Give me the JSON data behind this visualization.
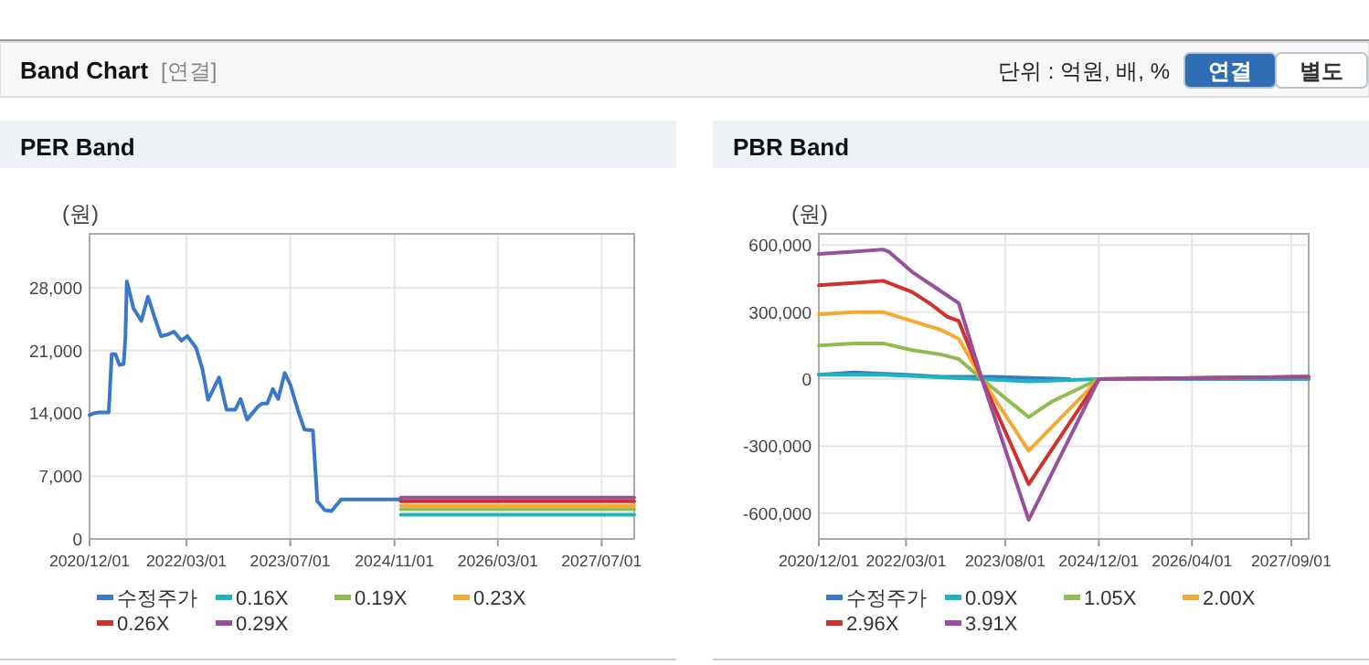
{
  "chart_data": [
    {
      "type": "other",
      "title": "Band Chart",
      "annotations": [
        "[연결]",
        "단위 : 억원, 배, %",
        "연결",
        "별도"
      ]
    },
    {
      "type": "line",
      "title": "PER Band",
      "ylabel": "(원)",
      "grid": true,
      "legend": "bottom",
      "marker": "none",
      "line_style": "solid",
      "xlim": [
        "2020-12-01",
        "2027-12-01"
      ],
      "xticks": [
        {
          "value": "2020-12-01",
          "label": "2020/12/01"
        },
        {
          "value": "2022-03-01",
          "label": "2022/03/01"
        },
        {
          "value": "2023-07-01",
          "label": "2023/07/01"
        },
        {
          "value": "2024-11-01",
          "label": "2024/11/01"
        },
        {
          "value": "2026-03-01",
          "label": "2026/03/01"
        },
        {
          "value": "2027-07-01",
          "label": "2027/07/01"
        }
      ],
      "ylim": [
        0,
        34000
      ],
      "yticks": [
        {
          "value": 0,
          "label": "0"
        },
        {
          "value": 7000,
          "label": "7,000"
        },
        {
          "value": 14000,
          "label": "14,000"
        },
        {
          "value": 21000,
          "label": "21,000"
        },
        {
          "value": 28000,
          "label": "28,000"
        }
      ],
      "series": [
        {
          "name": "수정주가",
          "color": "#3a78c9",
          "x": [
            "2020-12-01",
            "2020-12-20",
            "2021-01-15",
            "2021-03-01",
            "2021-03-15",
            "2021-04-01",
            "2021-04-20",
            "2021-05-10",
            "2021-05-18",
            "2021-05-25",
            "2021-06-05",
            "2021-06-25",
            "2021-08-01",
            "2021-09-01",
            "2021-10-05",
            "2021-11-01",
            "2021-12-05",
            "2022-01-01",
            "2022-02-05",
            "2022-03-05",
            "2022-04-15",
            "2022-05-15",
            "2022-06-10",
            "2022-08-01",
            "2022-09-05",
            "2022-10-15",
            "2022-11-10",
            "2022-12-10",
            "2023-02-01",
            "2023-02-20",
            "2023-03-15",
            "2023-04-10",
            "2023-05-05",
            "2023-06-05",
            "2023-07-01",
            "2023-08-05",
            "2023-09-05",
            "2023-10-15",
            "2023-11-05",
            "2023-12-10",
            "2024-01-10",
            "2024-02-25",
            "2024-12-01"
          ],
          "values": [
            13800,
            14000,
            14100,
            14100,
            20600,
            20600,
            19400,
            19500,
            22400,
            28700,
            27700,
            25700,
            24300,
            27000,
            24500,
            22600,
            22800,
            23100,
            22100,
            22600,
            21300,
            18900,
            15500,
            18000,
            14400,
            14400,
            15600,
            13300,
            14800,
            15100,
            15100,
            16700,
            15600,
            18500,
            17200,
            14400,
            12200,
            12100,
            4200,
            3200,
            3100,
            4400,
            4400
          ]
        },
        {
          "name": "0.16X",
          "color": "#1fb3bd",
          "x": [
            "2024-12-01",
            "2027-12-01"
          ],
          "values": [
            2700,
            2700
          ]
        },
        {
          "name": "0.19X",
          "color": "#8fbe4f",
          "x": [
            "2024-12-01",
            "2027-12-01"
          ],
          "values": [
            3300,
            3300
          ]
        },
        {
          "name": "0.23X",
          "color": "#f5a833",
          "x": [
            "2024-12-01",
            "2027-12-01"
          ],
          "values": [
            3700,
            3700
          ]
        },
        {
          "name": "0.26X",
          "color": "#d0312d",
          "x": [
            "2024-12-01",
            "2027-12-01"
          ],
          "values": [
            4200,
            4200
          ]
        },
        {
          "name": "0.29X",
          "color": "#9a4f9e",
          "x": [
            "2024-12-01",
            "2027-12-01"
          ],
          "values": [
            4600,
            4600
          ]
        }
      ]
    },
    {
      "type": "line",
      "title": "PBR Band",
      "ylabel": "(원)",
      "grid": true,
      "legend": "bottom",
      "marker": "none",
      "line_style": "solid",
      "xlim": [
        "2020-12-01",
        "2027-12-01"
      ],
      "xticks": [
        {
          "value": "2020-12-01",
          "label": "2020/12/01"
        },
        {
          "value": "2022-03-01",
          "label": "2022/03/01"
        },
        {
          "value": "2023-08-01",
          "label": "2023/08/01"
        },
        {
          "value": "2024-12-01",
          "label": "2024/12/01"
        },
        {
          "value": "2026-04-01",
          "label": "2026/04/01"
        },
        {
          "value": "2027-09-01",
          "label": "2027/09/01"
        }
      ],
      "ylim": [
        -715000,
        650000
      ],
      "yticks": [
        {
          "value": -600000,
          "label": "-600,000"
        },
        {
          "value": -300000,
          "label": "-300,000"
        },
        {
          "value": 0,
          "label": "0"
        },
        {
          "value": 300000,
          "label": "300,000"
        },
        {
          "value": 600000,
          "label": "600,000"
        }
      ],
      "series": [
        {
          "name": "수정주가",
          "color": "#3a78c9",
          "x": [
            "2020-12-01",
            "2021-06-01",
            "2022-03-01",
            "2022-09-01",
            "2023-06-01",
            "2024-07-01"
          ],
          "values": [
            20000,
            30000,
            20000,
            10000,
            10000,
            0
          ]
        },
        {
          "name": "0.09X",
          "color": "#1fb3bd",
          "x": [
            "2020-12-01",
            "2021-11-01",
            "2023-04-01",
            "2023-12-01",
            "2024-12-01",
            "2027-12-01"
          ],
          "values": [
            20000,
            20000,
            0,
            -10000,
            0,
            0
          ]
        },
        {
          "name": "1.05X",
          "color": "#8fbe4f",
          "x": [
            "2020-12-01",
            "2021-06-01",
            "2021-11-01",
            "2022-04-01",
            "2022-09-01",
            "2022-12-01",
            "2023-04-01",
            "2023-12-01",
            "2024-04-01",
            "2024-12-01",
            "2027-12-01"
          ],
          "values": [
            150000,
            160000,
            160000,
            130000,
            110000,
            90000,
            0,
            -170000,
            -100000,
            0,
            10000
          ]
        },
        {
          "name": "2.00X",
          "color": "#f5a833",
          "x": [
            "2020-12-01",
            "2021-06-01",
            "2021-11-01",
            "2022-04-01",
            "2022-09-01",
            "2022-12-01",
            "2023-04-01",
            "2023-12-01",
            "2024-12-01",
            "2027-12-01"
          ],
          "values": [
            290000,
            300000,
            300000,
            260000,
            220000,
            180000,
            0,
            -320000,
            0,
            10000
          ]
        },
        {
          "name": "2.96X",
          "color": "#d0312d",
          "x": [
            "2020-12-01",
            "2021-06-01",
            "2021-11-01",
            "2022-04-01",
            "2022-07-01",
            "2022-10-01",
            "2022-12-01",
            "2023-04-01",
            "2023-12-01",
            "2024-12-01",
            "2027-12-01"
          ],
          "values": [
            420000,
            430000,
            440000,
            390000,
            340000,
            280000,
            260000,
            0,
            -470000,
            0,
            10000
          ]
        },
        {
          "name": "3.91X",
          "color": "#9a4f9e",
          "x": [
            "2020-12-01",
            "2021-06-01",
            "2021-11-01",
            "2021-12-01",
            "2022-04-01",
            "2022-08-01",
            "2022-12-01",
            "2023-04-01",
            "2023-12-01",
            "2024-12-01",
            "2027-12-01"
          ],
          "values": [
            560000,
            570000,
            580000,
            570000,
            480000,
            410000,
            340000,
            0,
            -630000,
            0,
            10000
          ]
        }
      ]
    }
  ]
}
